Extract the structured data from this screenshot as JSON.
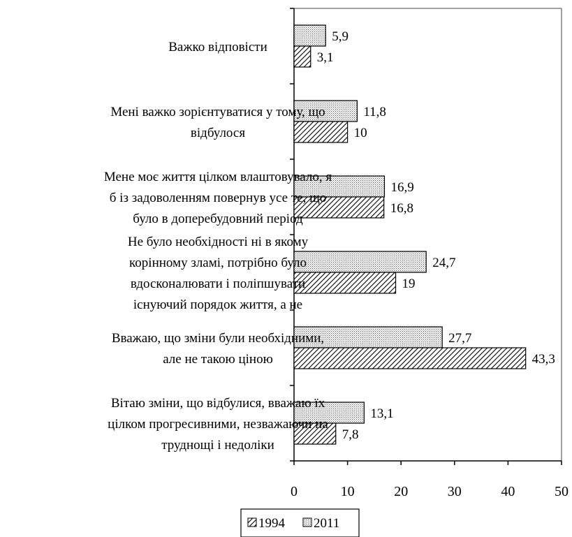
{
  "chart_data": {
    "type": "bar",
    "orientation": "horizontal",
    "categories": [
      [
        "Важко відповісти"
      ],
      [
        "Мені важко зорієнтуватися у тому, що",
        "відбулося"
      ],
      [
        "Мене моє життя цілком влаштовувало, я",
        "б із задоволенням повернув усе те, що",
        "було в доперебудовний період"
      ],
      [
        "Не було необхідності ні в якому",
        "корінному зламі, потрібно було",
        "вдосконалювати і поліпшувати",
        "існуючий порядок життя, а не"
      ],
      [
        "Вважаю, що зміни були необхідними,",
        "але не такою ціною"
      ],
      [
        "Вітаю зміни, що відбулися, вважаю їх",
        "цілком прогресивними, незважаючи на",
        "труднощі і недоліки"
      ]
    ],
    "series": [
      {
        "name": "1994",
        "values": [
          3.1,
          10,
          16.8,
          19,
          43.3,
          7.8
        ],
        "labels": [
          "3,1",
          "10",
          "16,8",
          "19",
          "43,3",
          "7,8"
        ],
        "pattern": "hatch"
      },
      {
        "name": "2011",
        "values": [
          5.9,
          11.8,
          16.9,
          24.7,
          27.7,
          13.1
        ],
        "labels": [
          "5,9",
          "11,8",
          "16,9",
          "24,7",
          "27,7",
          "13,1"
        ],
        "pattern": "dots"
      }
    ],
    "xlim": [
      0,
      50
    ],
    "xticks": [
      "0",
      "10",
      "20",
      "30",
      "40",
      "50"
    ],
    "grid": false,
    "legend": "bottom"
  }
}
